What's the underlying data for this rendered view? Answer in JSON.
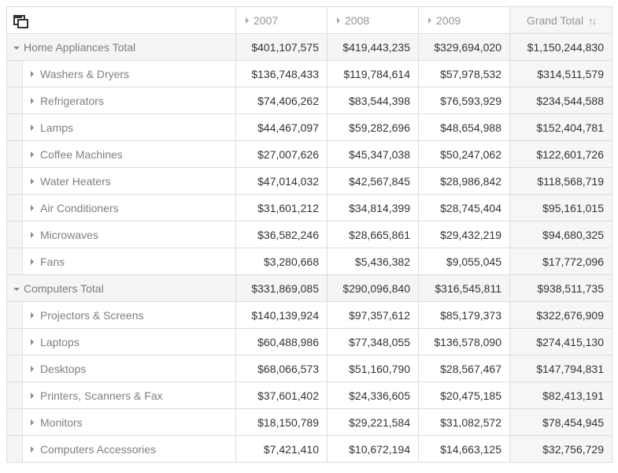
{
  "header": {
    "columns": [
      "2007",
      "2008",
      "2009"
    ],
    "grand_total": "Grand Total"
  },
  "icons": {
    "corner": "field-chooser-icon",
    "sort": "sort-icon"
  },
  "groups": [
    {
      "label": "Home Appliances Total",
      "values": [
        "$401,107,575",
        "$419,443,235",
        "$329,694,020",
        "$1,150,244,830"
      ],
      "rows": [
        {
          "label": "Washers & Dryers",
          "values": [
            "$136,748,433",
            "$119,784,614",
            "$57,978,532",
            "$314,511,579"
          ]
        },
        {
          "label": "Refrigerators",
          "values": [
            "$74,406,262",
            "$83,544,398",
            "$76,593,929",
            "$234,544,588"
          ]
        },
        {
          "label": "Lamps",
          "values": [
            "$44,467,097",
            "$59,282,696",
            "$48,654,988",
            "$152,404,781"
          ]
        },
        {
          "label": "Coffee Machines",
          "values": [
            "$27,007,626",
            "$45,347,038",
            "$50,247,062",
            "$122,601,726"
          ]
        },
        {
          "label": "Water Heaters",
          "values": [
            "$47,014,032",
            "$42,567,845",
            "$28,986,842",
            "$118,568,719"
          ]
        },
        {
          "label": "Air Conditioners",
          "values": [
            "$31,601,212",
            "$34,814,399",
            "$28,745,404",
            "$95,161,015"
          ]
        },
        {
          "label": "Microwaves",
          "values": [
            "$36,582,246",
            "$28,665,861",
            "$29,432,219",
            "$94,680,325"
          ]
        },
        {
          "label": "Fans",
          "values": [
            "$3,280,668",
            "$5,436,382",
            "$9,055,045",
            "$17,772,096"
          ]
        }
      ]
    },
    {
      "label": "Computers Total",
      "values": [
        "$331,869,085",
        "$290,096,840",
        "$316,545,811",
        "$938,511,735"
      ],
      "rows": [
        {
          "label": "Projectors & Screens",
          "values": [
            "$140,139,924",
            "$97,357,612",
            "$85,179,373",
            "$322,676,909"
          ]
        },
        {
          "label": "Laptops",
          "values": [
            "$60,488,986",
            "$77,348,055",
            "$136,578,090",
            "$274,415,130"
          ]
        },
        {
          "label": "Desktops",
          "values": [
            "$68,066,573",
            "$51,160,790",
            "$28,567,467",
            "$147,794,831"
          ]
        },
        {
          "label": "Printers, Scanners & Fax",
          "values": [
            "$37,601,402",
            "$24,336,605",
            "$20,475,185",
            "$82,413,191"
          ]
        },
        {
          "label": "Monitors",
          "values": [
            "$18,150,789",
            "$29,221,584",
            "$31,082,572",
            "$78,454,945"
          ]
        },
        {
          "label": "Computers Accessories",
          "values": [
            "$7,421,410",
            "$10,672,194",
            "$14,663,125",
            "$32,756,729"
          ]
        }
      ]
    }
  ]
}
